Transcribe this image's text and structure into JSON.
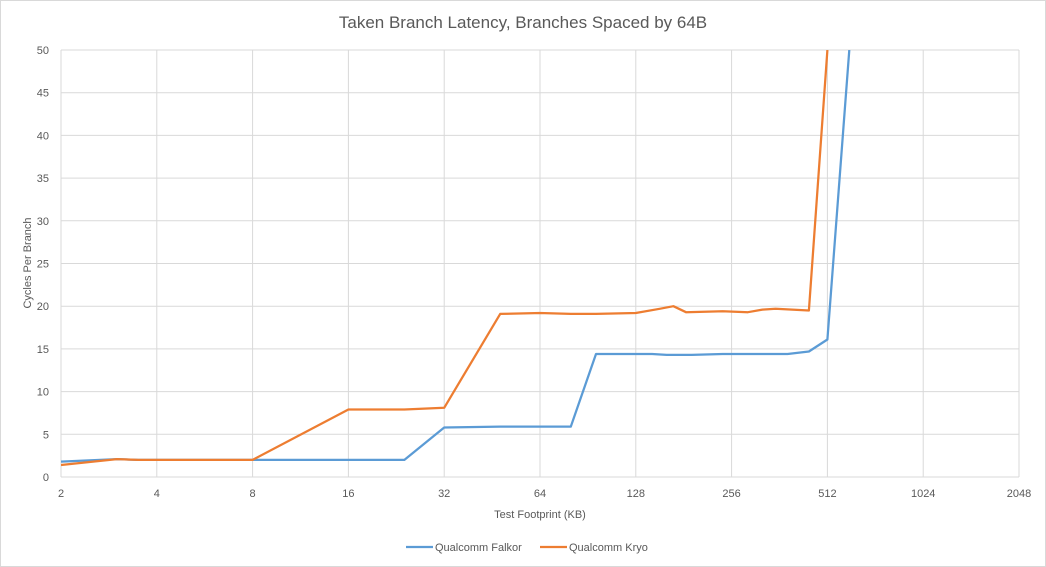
{
  "chart_data": {
    "type": "line",
    "title": "Taken Branch Latency, Branches Spaced by 64B",
    "xlabel": "Test Footprint (KB)",
    "ylabel": "Cycles Per Branch",
    "x_scale": "log2",
    "xlim": [
      2,
      2048
    ],
    "ylim": [
      0,
      50
    ],
    "x_ticks": [
      "2",
      "4",
      "8",
      "16",
      "32",
      "64",
      "128",
      "256",
      "512",
      "1024",
      "2048"
    ],
    "y_ticks": [
      "0",
      "5",
      "10",
      "15",
      "20",
      "25",
      "30",
      "35",
      "40",
      "45",
      "50"
    ],
    "grid": true,
    "legend_position": "bottom",
    "series": [
      {
        "name": "Qualcomm Falkor",
        "color": "#5b9bd5",
        "points": [
          [
            2,
            1.8
          ],
          [
            3,
            2.1
          ],
          [
            3.5,
            2.0
          ],
          [
            4,
            2.0
          ],
          [
            8,
            2.0
          ],
          [
            16,
            2.0
          ],
          [
            24,
            2.0
          ],
          [
            32,
            5.8
          ],
          [
            48,
            5.9
          ],
          [
            64,
            5.9
          ],
          [
            80,
            5.9
          ],
          [
            96,
            14.4
          ],
          [
            144,
            14.4
          ],
          [
            160,
            14.3
          ],
          [
            192,
            14.3
          ],
          [
            240,
            14.4
          ],
          [
            320,
            14.4
          ],
          [
            384,
            14.4
          ],
          [
            448,
            14.7
          ],
          [
            512,
            16.1
          ],
          [
            600,
            50
          ]
        ]
      },
      {
        "name": "Qualcomm Kryo",
        "color": "#ed7d31",
        "points": [
          [
            2,
            1.4
          ],
          [
            3,
            2.1
          ],
          [
            3.5,
            2.0
          ],
          [
            4,
            2.0
          ],
          [
            8,
            2.0
          ],
          [
            16,
            7.9
          ],
          [
            24,
            7.9
          ],
          [
            32,
            8.1
          ],
          [
            48,
            19.1
          ],
          [
            64,
            19.2
          ],
          [
            80,
            19.1
          ],
          [
            96,
            19.1
          ],
          [
            128,
            19.2
          ],
          [
            152,
            19.7
          ],
          [
            168,
            20.0
          ],
          [
            184,
            19.3
          ],
          [
            240,
            19.4
          ],
          [
            288,
            19.3
          ],
          [
            320,
            19.6
          ],
          [
            352,
            19.7
          ],
          [
            448,
            19.5
          ],
          [
            512,
            50
          ]
        ]
      }
    ]
  }
}
